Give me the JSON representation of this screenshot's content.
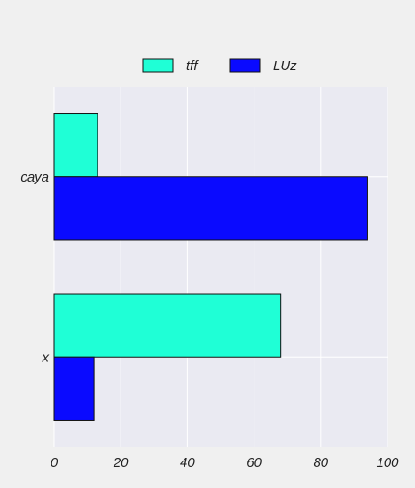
{
  "chart_data": {
    "type": "bar",
    "orientation": "horizontal",
    "categories": [
      "caya",
      "x"
    ],
    "series": [
      {
        "name": "tff",
        "values": [
          13,
          68
        ],
        "color": "#1fffd6"
      },
      {
        "name": "LUz",
        "values": [
          94,
          12
        ],
        "color": "#0a0aff"
      }
    ],
    "xlim": [
      0,
      100
    ],
    "xticks": [
      "0",
      "20",
      "40",
      "60",
      "80",
      "100"
    ],
    "xtick_values": [
      0,
      20,
      40,
      60,
      80,
      100
    ],
    "title": "",
    "xlabel": "",
    "ylabel": "",
    "grid": true,
    "legend_position": "top-center",
    "plot_background": "#eaeaf2",
    "figure_background": "#f0f0f0"
  }
}
